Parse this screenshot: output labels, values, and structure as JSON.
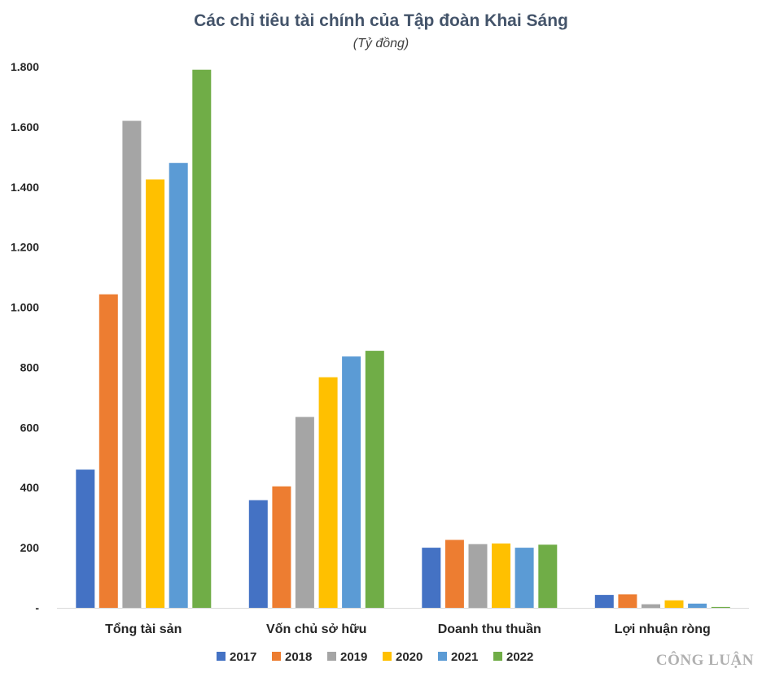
{
  "chart_data": {
    "type": "bar",
    "title": "Các chỉ tiêu tài chính của Tập đoàn Khai Sáng",
    "subtitle": "(Tỷ đồng)",
    "categories": [
      "Tổng tài sản",
      "Vốn chủ sở hữu",
      "Doanh thu thuần",
      "Lợi nhuận ròng"
    ],
    "series": [
      {
        "name": "2017",
        "color": "#4472c4",
        "values": [
          460,
          358,
          200,
          43
        ]
      },
      {
        "name": "2018",
        "color": "#ed7d31",
        "values": [
          1043,
          404,
          226,
          45
        ]
      },
      {
        "name": "2019",
        "color": "#a5a5a5",
        "values": [
          1620,
          635,
          212,
          12
        ]
      },
      {
        "name": "2020",
        "color": "#ffc000",
        "values": [
          1425,
          767,
          214,
          25
        ]
      },
      {
        "name": "2021",
        "color": "#5b9bd5",
        "values": [
          1480,
          836,
          200,
          14
        ]
      },
      {
        "name": "2022",
        "color": "#70ad47",
        "values": [
          1790,
          855,
          210,
          3
        ]
      }
    ],
    "ylim": [
      0,
      1800
    ],
    "yticks": [
      0,
      200,
      400,
      600,
      800,
      1000,
      1200,
      1400,
      1600,
      1800
    ],
    "ytick_labels": [
      "-",
      "200",
      "400",
      "600",
      "800",
      "1.000",
      "1.200",
      "1.400",
      "1.600",
      "1.800"
    ],
    "grid": false,
    "legend_position": "bottom"
  },
  "watermark": "CÔNG LUẬN"
}
